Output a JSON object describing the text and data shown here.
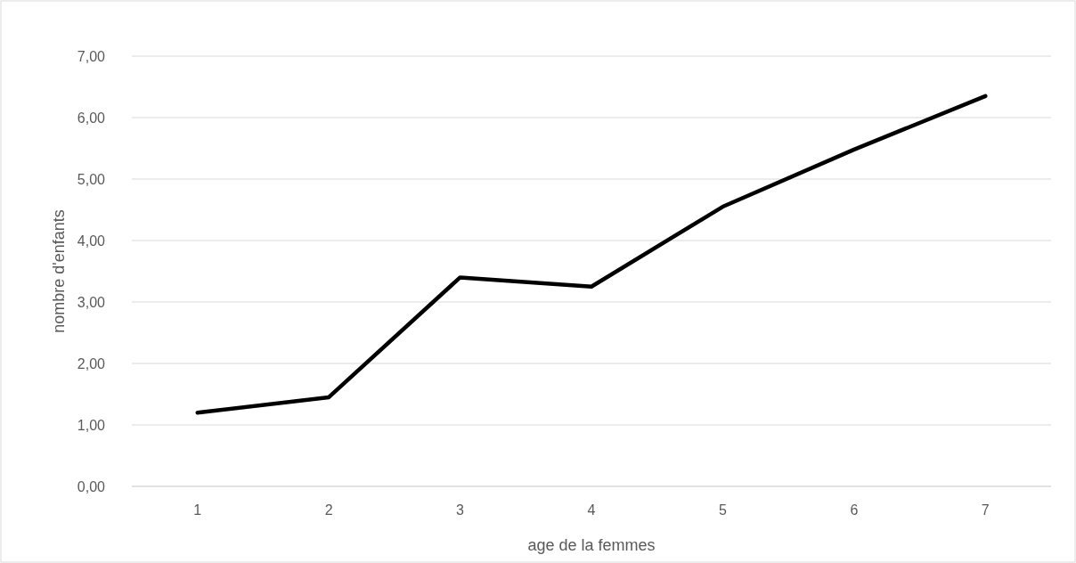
{
  "chart_data": {
    "type": "line",
    "xlabel": "age de la femmes",
    "ylabel": "nombre d'enfants",
    "categories": [
      "1",
      "2",
      "3",
      "4",
      "5",
      "6",
      "7"
    ],
    "series": [
      {
        "color": "#000000",
        "values": [
          1.2,
          1.45,
          3.4,
          3.25,
          4.55,
          5.48,
          6.35
        ]
      }
    ],
    "ylim": [
      0,
      7
    ],
    "yticks": [
      {
        "value": 0,
        "label": "0,00"
      },
      {
        "value": 1,
        "label": "1,00"
      },
      {
        "value": 2,
        "label": "2,00"
      },
      {
        "value": 3,
        "label": "3,00"
      },
      {
        "value": 4,
        "label": "4,00"
      },
      {
        "value": 5,
        "label": "5,00"
      },
      {
        "value": 6,
        "label": "6,00"
      },
      {
        "value": 7,
        "label": "7,00"
      }
    ],
    "grid": "y",
    "marker": "none",
    "line_style": "solid"
  }
}
